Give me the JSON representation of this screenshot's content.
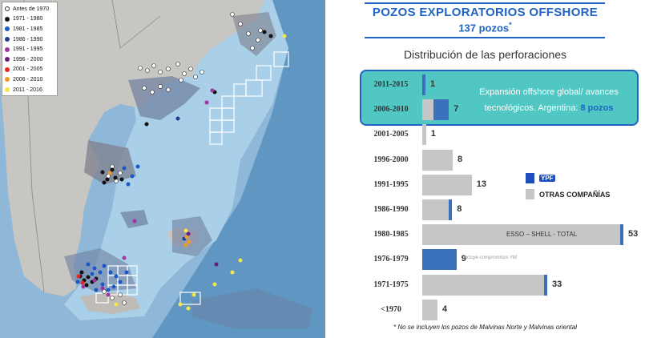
{
  "map_legend": [
    {
      "label": "Antes de 1970",
      "color": "#ffffff"
    },
    {
      "label": "1971 - 1980",
      "color": "#111111"
    },
    {
      "label": "1981 - 1985",
      "color": "#1d58c8"
    },
    {
      "label": "1986 - 1990",
      "color": "#1f3f8f"
    },
    {
      "label": "1991 - 1995",
      "color": "#a0349e"
    },
    {
      "label": "1996 - 2000",
      "color": "#6a1b78"
    },
    {
      "label": "2001 - 2005",
      "color": "#e8261d"
    },
    {
      "label": "2006 - 2010",
      "color": "#f09a2c"
    },
    {
      "label": "2011 - 2016",
      "color": "#f5e64a"
    }
  ],
  "header": {
    "title": "POZOS EXPLORATORIOS OFFSHORE",
    "count": "137 pozos",
    "count_mark": "*"
  },
  "subtitle": "Distribución de las perforaciones",
  "highlight": {
    "text": "Expansión offshore global/ avances tecnológicos. Argentina: ",
    "emphasis": "8 pozos"
  },
  "legend": {
    "ypf": "YPF",
    "others": "OTRAS COMPAÑÍAS"
  },
  "colors": {
    "ypf": "#3a70bc",
    "others": "#c6c6c6",
    "title": "#1f63c6",
    "highlight": "#51c7c3"
  },
  "chart_data": {
    "type": "bar",
    "categories": [
      "2011-2015",
      "2006-2010",
      "2001-2005",
      "1996-2000",
      "1991-1995",
      "1986-1990",
      "1980-1985",
      "1976-1979",
      "1971-1975",
      "<1970"
    ],
    "series": [
      {
        "name": "YPF",
        "values": [
          1,
          4,
          0,
          0,
          0,
          1,
          1,
          9,
          1,
          0
        ]
      },
      {
        "name": "OTRAS COMPAÑÍAS",
        "values": [
          0,
          3,
          1,
          8,
          13,
          7,
          52,
          0,
          32,
          4
        ]
      }
    ],
    "totals": [
      1,
      7,
      1,
      8,
      13,
      8,
      53,
      9,
      33,
      4
    ],
    "bar_labels": {
      "6": "ESSO – SHELL - TOTAL",
      "7": "Incluye compromisos YM"
    }
  },
  "footnote": "* No se incluyen los pozos de Malvinas Norte y Malvinas oriental"
}
